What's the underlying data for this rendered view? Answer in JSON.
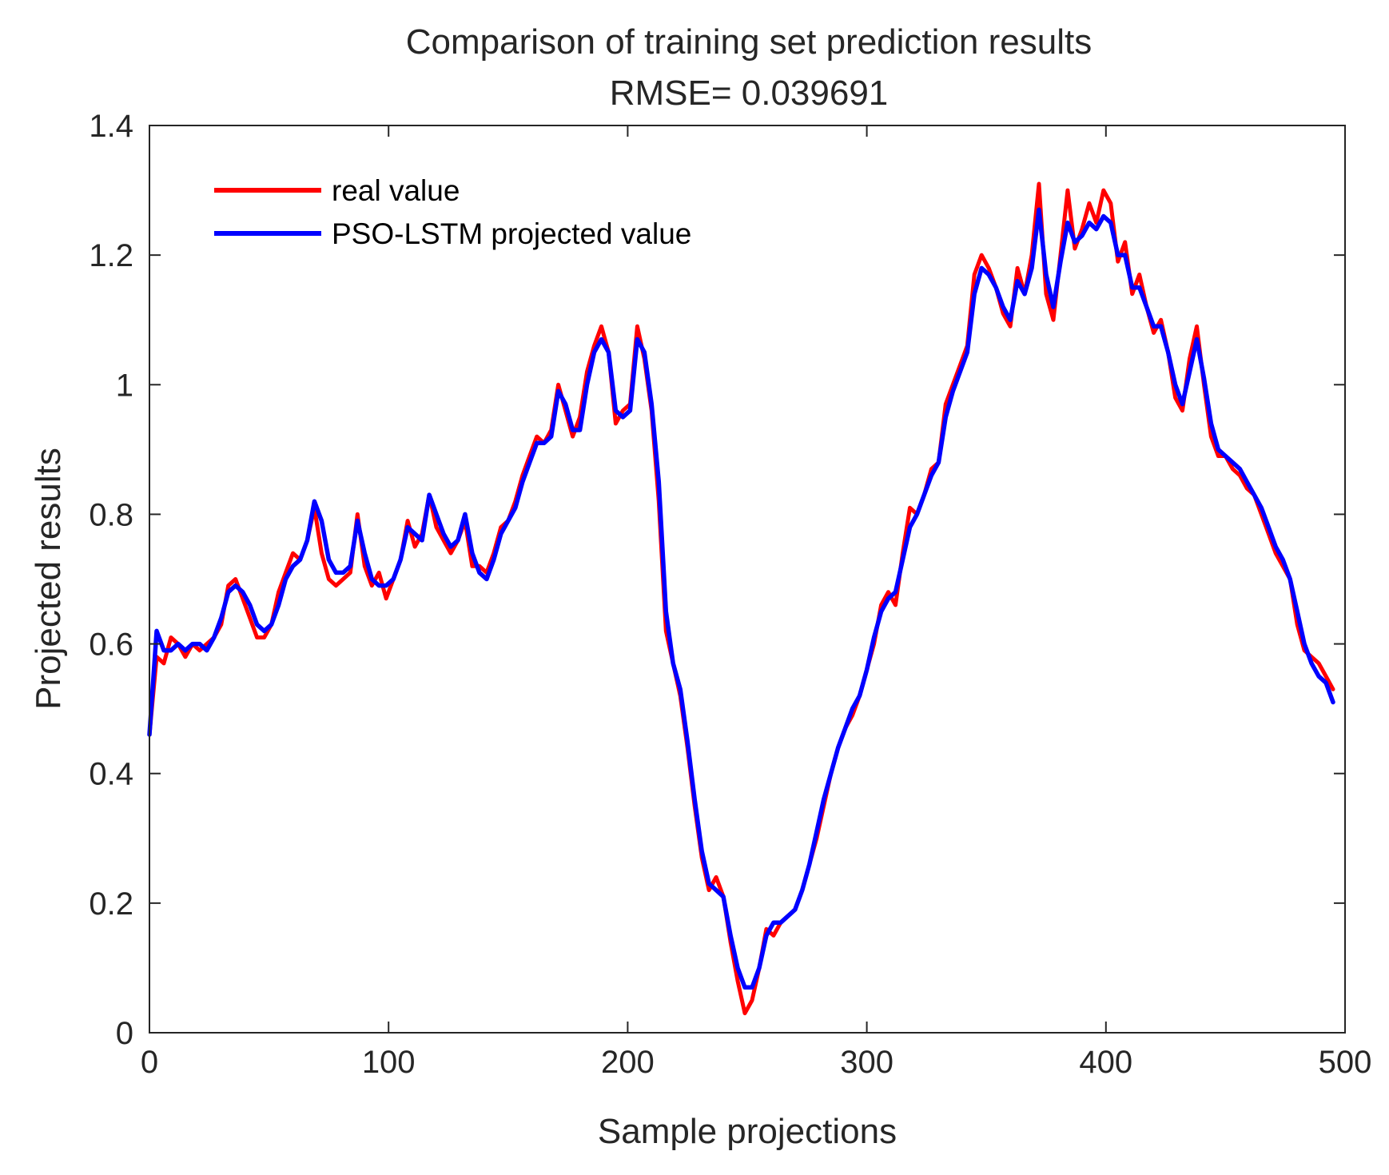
{
  "chart_data": {
    "type": "line",
    "title": "Comparison of training set prediction results",
    "subtitle": "RMSE= 0.039691",
    "xlabel": "Sample projections",
    "ylabel": "Projected results",
    "xlim": [
      0,
      500
    ],
    "ylim": [
      0,
      1.4
    ],
    "xticks": [
      0,
      100,
      200,
      300,
      400,
      500
    ],
    "xtick_labels": [
      "0",
      "100",
      "200",
      "300",
      "400",
      "500"
    ],
    "yticks": [
      0,
      0.2,
      0.4,
      0.6,
      0.8,
      1.0,
      1.2,
      1.4
    ],
    "ytick_labels": [
      "0",
      "0.2",
      "0.4",
      "0.6",
      "0.8",
      "1",
      "1.2",
      "1.4"
    ],
    "grid": false,
    "legend_position": "top-left",
    "series": [
      {
        "name": "real value",
        "color": "#ff0000",
        "x": [
          0,
          3,
          6,
          9,
          12,
          15,
          18,
          21,
          24,
          27,
          30,
          33,
          36,
          39,
          42,
          45,
          48,
          51,
          54,
          57,
          60,
          63,
          66,
          69,
          72,
          75,
          78,
          81,
          84,
          87,
          90,
          93,
          96,
          99,
          102,
          105,
          108,
          111,
          114,
          117,
          120,
          123,
          126,
          129,
          132,
          135,
          138,
          141,
          144,
          147,
          150,
          153,
          156,
          159,
          162,
          165,
          168,
          171,
          174,
          177,
          180,
          183,
          186,
          189,
          192,
          195,
          198,
          201,
          204,
          207,
          210,
          213,
          216,
          219,
          222,
          225,
          228,
          231,
          234,
          237,
          240,
          243,
          246,
          249,
          252,
          255,
          258,
          261,
          264,
          267,
          270,
          273,
          276,
          279,
          282,
          285,
          288,
          291,
          294,
          297,
          300,
          303,
          306,
          309,
          312,
          315,
          318,
          321,
          324,
          327,
          330,
          333,
          336,
          339,
          342,
          345,
          348,
          351,
          354,
          357,
          360,
          363,
          366,
          369,
          372,
          375,
          378,
          381,
          384,
          387,
          390,
          393,
          396,
          399,
          402,
          405,
          408,
          411,
          414,
          417,
          420,
          423,
          426,
          429,
          432,
          435,
          438,
          441,
          444,
          447,
          450,
          453,
          456,
          459,
          462,
          465,
          468,
          471,
          474,
          477,
          480,
          483,
          486,
          489,
          492,
          495
        ],
        "y": [
          0.46,
          0.58,
          0.57,
          0.61,
          0.6,
          0.58,
          0.6,
          0.59,
          0.6,
          0.61,
          0.63,
          0.69,
          0.7,
          0.67,
          0.64,
          0.61,
          0.61,
          0.63,
          0.68,
          0.71,
          0.74,
          0.73,
          0.76,
          0.81,
          0.74,
          0.7,
          0.69,
          0.7,
          0.71,
          0.8,
          0.72,
          0.69,
          0.71,
          0.67,
          0.7,
          0.73,
          0.79,
          0.75,
          0.77,
          0.83,
          0.78,
          0.76,
          0.74,
          0.76,
          0.79,
          0.72,
          0.72,
          0.71,
          0.74,
          0.78,
          0.79,
          0.82,
          0.86,
          0.89,
          0.92,
          0.91,
          0.93,
          1.0,
          0.96,
          0.92,
          0.95,
          1.02,
          1.06,
          1.09,
          1.05,
          0.94,
          0.96,
          0.97,
          1.09,
          1.04,
          0.96,
          0.82,
          0.62,
          0.57,
          0.52,
          0.44,
          0.35,
          0.27,
          0.22,
          0.24,
          0.21,
          0.14,
          0.08,
          0.03,
          0.05,
          0.1,
          0.16,
          0.15,
          0.17,
          0.18,
          0.19,
          0.22,
          0.26,
          0.3,
          0.35,
          0.4,
          0.44,
          0.47,
          0.49,
          0.52,
          0.56,
          0.6,
          0.66,
          0.68,
          0.66,
          0.74,
          0.81,
          0.8,
          0.83,
          0.87,
          0.88,
          0.97,
          1.0,
          1.03,
          1.06,
          1.17,
          1.2,
          1.18,
          1.15,
          1.11,
          1.09,
          1.18,
          1.14,
          1.2,
          1.31,
          1.14,
          1.1,
          1.2,
          1.3,
          1.21,
          1.24,
          1.28,
          1.25,
          1.3,
          1.28,
          1.19,
          1.22,
          1.14,
          1.17,
          1.12,
          1.08,
          1.1,
          1.05,
          0.98,
          0.96,
          1.04,
          1.09,
          1.0,
          0.92,
          0.89,
          0.89,
          0.87,
          0.86,
          0.84,
          0.83,
          0.8,
          0.77,
          0.74,
          0.72,
          0.7,
          0.63,
          0.59,
          0.58,
          0.57,
          0.55,
          0.53
        ]
      },
      {
        "name": "PSO-LSTM projected value",
        "color": "#0000ff",
        "x": [
          0,
          3,
          6,
          9,
          12,
          15,
          18,
          21,
          24,
          27,
          30,
          33,
          36,
          39,
          42,
          45,
          48,
          51,
          54,
          57,
          60,
          63,
          66,
          69,
          72,
          75,
          78,
          81,
          84,
          87,
          90,
          93,
          96,
          99,
          102,
          105,
          108,
          111,
          114,
          117,
          120,
          123,
          126,
          129,
          132,
          135,
          138,
          141,
          144,
          147,
          150,
          153,
          156,
          159,
          162,
          165,
          168,
          171,
          174,
          177,
          180,
          183,
          186,
          189,
          192,
          195,
          198,
          201,
          204,
          207,
          210,
          213,
          216,
          219,
          222,
          225,
          228,
          231,
          234,
          237,
          240,
          243,
          246,
          249,
          252,
          255,
          258,
          261,
          264,
          267,
          270,
          273,
          276,
          279,
          282,
          285,
          288,
          291,
          294,
          297,
          300,
          303,
          306,
          309,
          312,
          315,
          318,
          321,
          324,
          327,
          330,
          333,
          336,
          339,
          342,
          345,
          348,
          351,
          354,
          357,
          360,
          363,
          366,
          369,
          372,
          375,
          378,
          381,
          384,
          387,
          390,
          393,
          396,
          399,
          402,
          405,
          408,
          411,
          414,
          417,
          420,
          423,
          426,
          429,
          432,
          435,
          438,
          441,
          444,
          447,
          450,
          453,
          456,
          459,
          462,
          465,
          468,
          471,
          474,
          477,
          480,
          483,
          486,
          489,
          492,
          495
        ],
        "y": [
          0.46,
          0.62,
          0.59,
          0.59,
          0.6,
          0.59,
          0.6,
          0.6,
          0.59,
          0.61,
          0.64,
          0.68,
          0.69,
          0.68,
          0.66,
          0.63,
          0.62,
          0.63,
          0.66,
          0.7,
          0.72,
          0.73,
          0.76,
          0.82,
          0.79,
          0.73,
          0.71,
          0.71,
          0.72,
          0.79,
          0.74,
          0.7,
          0.69,
          0.69,
          0.7,
          0.73,
          0.78,
          0.77,
          0.76,
          0.83,
          0.8,
          0.77,
          0.75,
          0.76,
          0.8,
          0.74,
          0.71,
          0.7,
          0.73,
          0.77,
          0.79,
          0.81,
          0.85,
          0.88,
          0.91,
          0.91,
          0.92,
          0.99,
          0.97,
          0.93,
          0.93,
          1.0,
          1.05,
          1.07,
          1.05,
          0.96,
          0.95,
          0.96,
          1.07,
          1.05,
          0.97,
          0.85,
          0.65,
          0.57,
          0.53,
          0.45,
          0.36,
          0.28,
          0.23,
          0.22,
          0.21,
          0.15,
          0.1,
          0.07,
          0.07,
          0.1,
          0.15,
          0.17,
          0.17,
          0.18,
          0.19,
          0.22,
          0.26,
          0.31,
          0.36,
          0.4,
          0.44,
          0.47,
          0.5,
          0.52,
          0.56,
          0.61,
          0.65,
          0.67,
          0.68,
          0.73,
          0.78,
          0.8,
          0.83,
          0.86,
          0.88,
          0.95,
          0.99,
          1.02,
          1.05,
          1.14,
          1.18,
          1.17,
          1.15,
          1.12,
          1.1,
          1.16,
          1.14,
          1.18,
          1.27,
          1.17,
          1.12,
          1.19,
          1.25,
          1.22,
          1.23,
          1.25,
          1.24,
          1.26,
          1.25,
          1.2,
          1.2,
          1.15,
          1.15,
          1.12,
          1.09,
          1.09,
          1.05,
          1.0,
          0.97,
          1.02,
          1.07,
          1.01,
          0.94,
          0.9,
          0.89,
          0.88,
          0.87,
          0.85,
          0.83,
          0.81,
          0.78,
          0.75,
          0.73,
          0.7,
          0.65,
          0.6,
          0.57,
          0.55,
          0.54,
          0.51
        ]
      }
    ]
  }
}
